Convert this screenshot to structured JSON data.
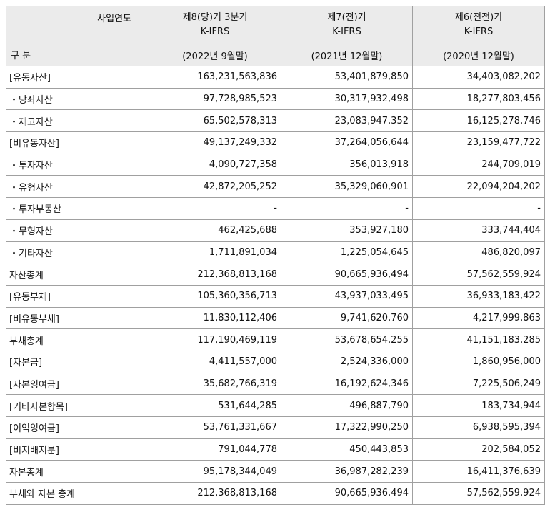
{
  "header": {
    "year_label": "사업연도",
    "section_label": "구 분",
    "columns": [
      {
        "period": "제8(당)기 3분기",
        "standard": "K-IFRS",
        "date": "(2022년 9월말)"
      },
      {
        "period": "제7(전)기",
        "standard": "K-IFRS",
        "date": "(2021년 12월말)"
      },
      {
        "period": "제6(전전)기",
        "standard": "K-IFRS",
        "date": "(2020년 12월말)"
      }
    ]
  },
  "rows": [
    {
      "label": "[유동자산]",
      "values": [
        "163,231,563,836",
        "53,401,879,850",
        "34,403,082,202"
      ]
    },
    {
      "label": "・당좌자산",
      "values": [
        "97,728,985,523",
        "30,317,932,498",
        "18,277,803,456"
      ]
    },
    {
      "label": "・재고자산",
      "values": [
        "65,502,578,313",
        "23,083,947,352",
        "16,125,278,746"
      ]
    },
    {
      "label": "[비유동자산]",
      "values": [
        "49,137,249,332",
        "37,264,056,644",
        "23,159,477,722"
      ]
    },
    {
      "label": "・투자자산",
      "values": [
        "4,090,727,358",
        "356,013,918",
        "244,709,019"
      ]
    },
    {
      "label": "・유형자산",
      "values": [
        "42,872,205,252",
        "35,329,060,901",
        "22,094,204,202"
      ]
    },
    {
      "label": "・투자부동산",
      "values": [
        "-",
        "-",
        "-"
      ]
    },
    {
      "label": "・무형자산",
      "values": [
        "462,425,688",
        "353,927,180",
        "333,744,404"
      ]
    },
    {
      "label": "・기타자산",
      "values": [
        "1,711,891,034",
        "1,225,054,645",
        "486,820,097"
      ]
    },
    {
      "label": "자산총계",
      "values": [
        "212,368,813,168",
        "90,665,936,494",
        "57,562,559,924"
      ]
    },
    {
      "label": "[유동부채]",
      "values": [
        "105,360,356,713",
        "43,937,033,495",
        "36,933,183,422"
      ]
    },
    {
      "label": "[비유동부채]",
      "values": [
        "11,830,112,406",
        "9,741,620,760",
        "4,217,999,863"
      ]
    },
    {
      "label": "부채총계",
      "values": [
        "117,190,469,119",
        "53,678,654,255",
        "41,151,183,285"
      ]
    },
    {
      "label": "[자본금]",
      "values": [
        "4,411,557,000",
        "2,524,336,000",
        "1,860,956,000"
      ]
    },
    {
      "label": "[자본잉여금]",
      "values": [
        "35,682,766,319",
        "16,192,624,346",
        "7,225,506,249"
      ]
    },
    {
      "label": "[기타자본항목]",
      "values": [
        "531,644,285",
        "496,887,790",
        "183,734,944"
      ]
    },
    {
      "label": "[이익잉여금]",
      "values": [
        "53,761,331,667",
        "17,322,990,250",
        "6,938,595,394"
      ]
    },
    {
      "label": "[비지배지분]",
      "values": [
        "791,044,778",
        "450,443,853",
        "202,584,052"
      ]
    },
    {
      "label": "자본총계",
      "values": [
        "95,178,344,049",
        "36,987,282,239",
        "16,411,376,639"
      ]
    },
    {
      "label": "부채와 자본 총계",
      "values": [
        "212,368,813,168",
        "90,665,936,494",
        "57,562,559,924"
      ]
    }
  ]
}
